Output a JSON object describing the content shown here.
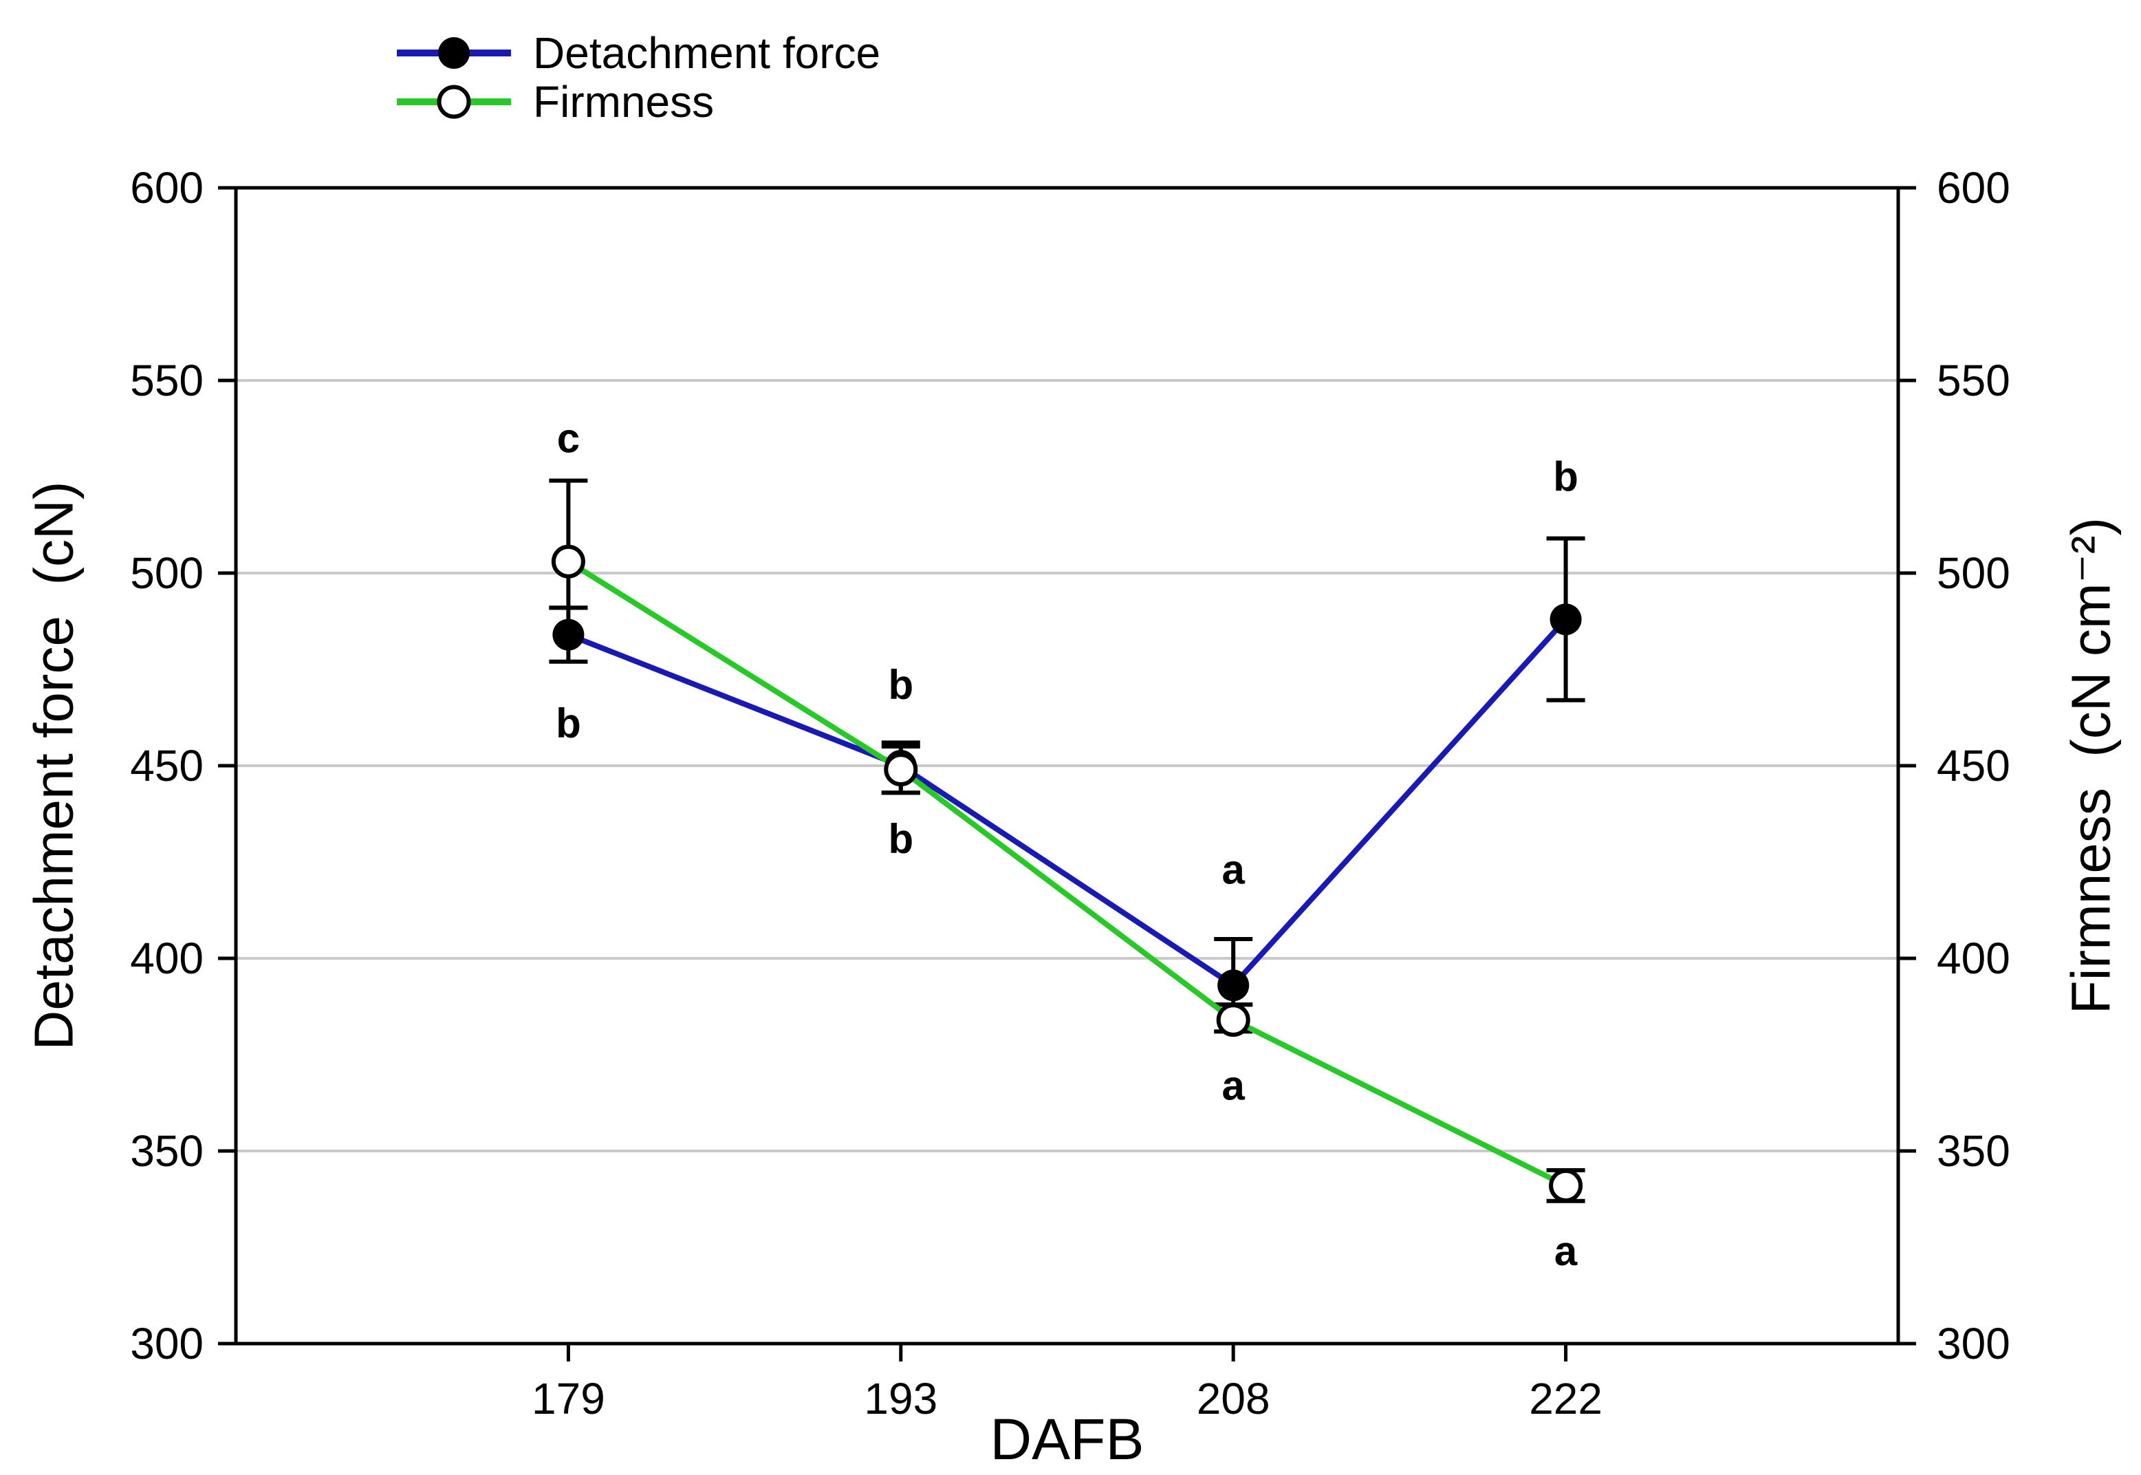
{
  "chart_data": {
    "type": "line",
    "title": "",
    "x": [
      179,
      193,
      208,
      222
    ],
    "xlabel": "DAFB",
    "ylabel_left": "Detachment force  (cN)",
    "ylabel_right": "Firmness  (cN cm⁻²)",
    "ylim": [
      300,
      600
    ],
    "yticks": [
      300,
      350,
      400,
      450,
      500,
      550,
      600
    ],
    "gridlines": [
      350,
      400,
      450,
      500,
      550
    ],
    "grid": "horizontal-light-gray",
    "legend_position": "above-plot-left",
    "series": [
      {
        "name": "Detachment force",
        "color": "#1919b4",
        "marker": "filled-black-circle",
        "values": [
          484,
          450,
          393,
          488
        ],
        "error_caps_upper": [
          491,
          456,
          405,
          509
        ],
        "error_caps_lower": [
          477,
          443,
          388,
          467
        ]
      },
      {
        "name": "Firmness",
        "color": "#28c828",
        "marker": "open-white-circle",
        "values": [
          503,
          449,
          384,
          341
        ],
        "error_caps_upper": [
          524,
          455,
          388,
          345
        ],
        "error_caps_lower": [
          491,
          443,
          381,
          337
        ]
      }
    ],
    "annotations": [
      {
        "x": 179,
        "value": 535,
        "text": "c",
        "series": "Firmness",
        "placement": "above"
      },
      {
        "x": 179,
        "value": 461,
        "text": "b",
        "series": "Detachment force",
        "placement": "below"
      },
      {
        "x": 193,
        "value": 471,
        "text": "b",
        "series": "Detachment force",
        "placement": "above"
      },
      {
        "x": 193,
        "value": 431,
        "text": "b",
        "series": "Firmness",
        "placement": "below"
      },
      {
        "x": 208,
        "value": 423,
        "text": "a",
        "series": "Detachment force",
        "placement": "above"
      },
      {
        "x": 208,
        "value": 367,
        "text": "a",
        "series": "Firmness",
        "placement": "below"
      },
      {
        "x": 222,
        "value": 525,
        "text": "b",
        "series": "Detachment force",
        "placement": "above"
      },
      {
        "x": 222,
        "value": 324,
        "text": "a",
        "series": "Firmness",
        "placement": "below"
      }
    ],
    "colors": {
      "grid": "#c9c9c9",
      "axis": "#000000",
      "error_bars": "#000000",
      "background": "#ffffff",
      "detachment_line": "#1919b4",
      "firmness_line": "#28c828"
    }
  },
  "legend": {
    "items": [
      {
        "label": "Detachment force"
      },
      {
        "label": "Firmness"
      }
    ]
  }
}
